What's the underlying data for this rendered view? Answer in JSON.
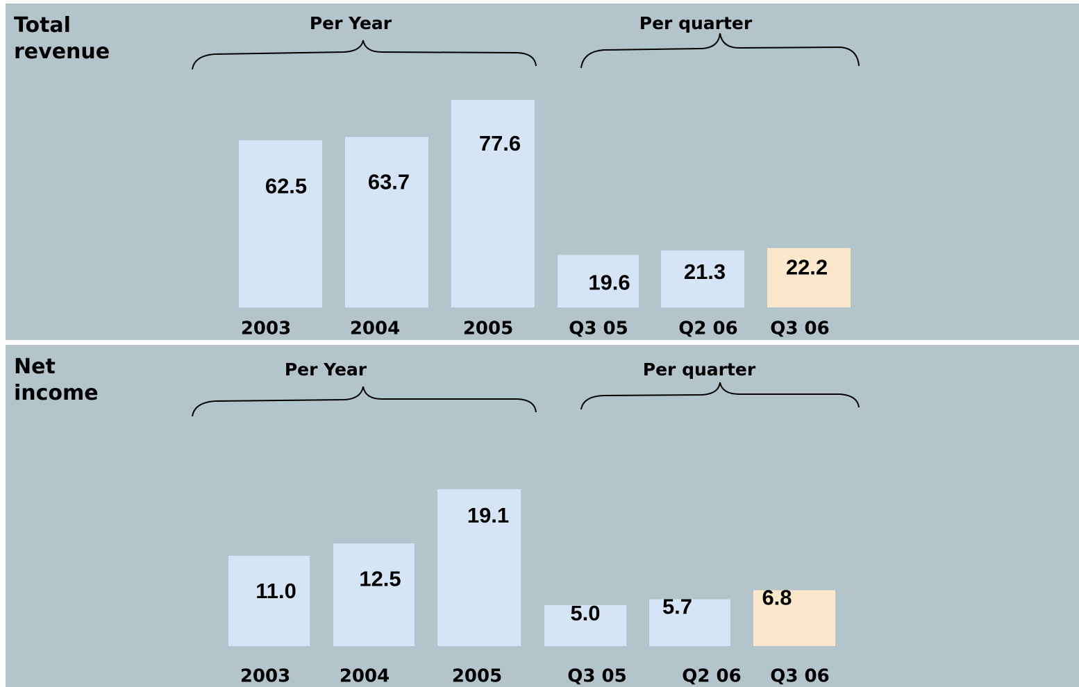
{
  "chart_data": [
    {
      "type": "bar",
      "title": "Total revenue",
      "groups": [
        "Per Year",
        "Per quarter"
      ],
      "categories": [
        "2003",
        "2004",
        "2005",
        "Q3 05",
        "Q2 06",
        "Q3 06"
      ],
      "values": [
        62.5,
        63.7,
        77.6,
        19.6,
        21.3,
        22.2
      ],
      "value_labels": [
        "62.5",
        "63.7",
        "77.6",
        "19.6",
        "21.3",
        "22.2"
      ],
      "colors": [
        "#d5e5f6",
        "#d5e5f6",
        "#d5e5f6",
        "#d5e5f6",
        "#d5e5f6",
        "#fbe8cc"
      ]
    },
    {
      "type": "bar",
      "title": "Net income",
      "groups": [
        "Per Year",
        "Per quarter"
      ],
      "categories": [
        "2003",
        "2004",
        "2005",
        "Q3 05",
        "Q2 06",
        "Q3 06"
      ],
      "values": [
        11.0,
        12.5,
        19.1,
        5.0,
        5.7,
        6.8
      ],
      "value_labels": [
        "11.0",
        "12.5",
        "19.1",
        "5.0",
        "5.7",
        "6.8"
      ],
      "colors": [
        "#d5e5f6",
        "#d5e5f6",
        "#d5e5f6",
        "#d5e5f6",
        "#d5e5f6",
        "#fbe8cc"
      ]
    }
  ]
}
